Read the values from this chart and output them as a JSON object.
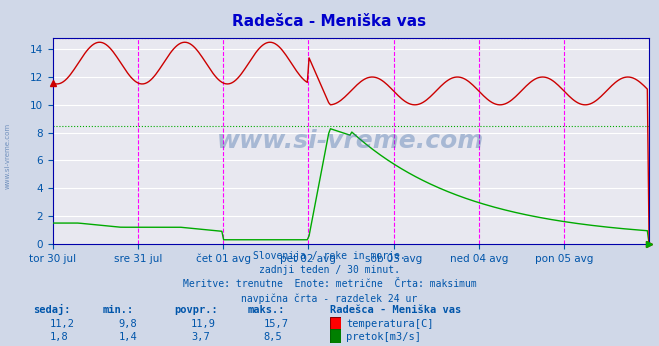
{
  "title": "Radešca - Meniška vas",
  "title_color": "#0000cc",
  "bg_color": "#d0d8e8",
  "plot_bg_color": "#e8e8f0",
  "grid_color": "#ffffff",
  "axis_color": "#0000aa",
  "text_color": "#0055aa",
  "subtitle_lines": [
    "Slovenija / reke in morje.",
    "zadnji teden / 30 minut.",
    "Meritve: trenutne  Enote: metrične  Črta: maksimum",
    "navpična črta - razdelek 24 ur"
  ],
  "xlabel_ticks": [
    "tor 30 jul",
    "sre 31 jul",
    "čet 01 avg",
    "pet 02 avg",
    "sob 03 avg",
    "ned 04 avg",
    "pon 05 avg"
  ],
  "ylabel_ticks": [
    0,
    2,
    4,
    6,
    8,
    10,
    12,
    14
  ],
  "ymin": 0,
  "ymax": 14.8,
  "temp_color": "#cc0000",
  "flow_color": "#00aa00",
  "vline_color": "#ff00ff",
  "hline_temp_max": 15.7,
  "hline_flow_max": 8.5,
  "watermark": "www.si-vreme.com",
  "watermark_color": "#3060a0",
  "legend_title": "Radešca - Meniška vas",
  "stats": {
    "headers": [
      "sedaj:",
      "min.:",
      "povpr.:",
      "maks.:"
    ],
    "temp": [
      11.2,
      9.8,
      11.9,
      15.7
    ],
    "flow": [
      1.8,
      1.4,
      3.7,
      8.5
    ],
    "temp_label": "temperatura[C]",
    "flow_label": "pretok[m3/s]"
  }
}
